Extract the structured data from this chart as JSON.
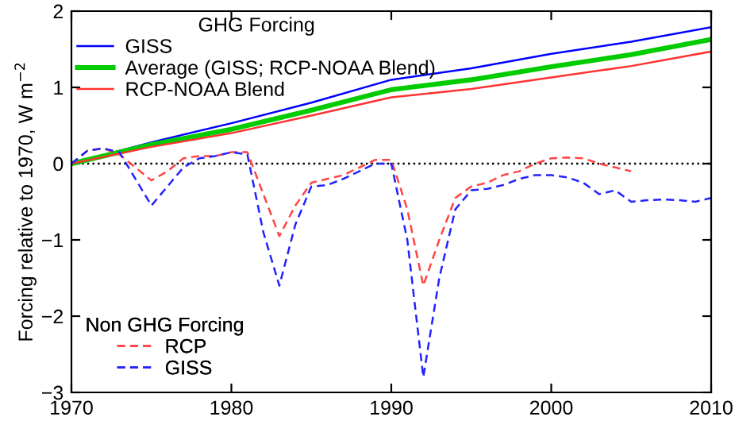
{
  "chart_data": {
    "type": "line",
    "ylabel": "Forcing relative to 1970, W m$^{−2}$",
    "xlim": [
      1970,
      2010
    ],
    "xticks": [
      1970,
      1980,
      1990,
      2000,
      2010
    ],
    "ylim": [
      -3,
      2
    ],
    "yticks": [
      {
        "value": -3,
        "label": "−3"
      },
      {
        "value": -2,
        "label": "−2"
      },
      {
        "value": -1,
        "label": "−1"
      },
      0,
      1,
      2
    ],
    "grid": false,
    "legend": "left",
    "marker": "none",
    "annotations": [
      "GHG Forcing",
      "Non GHG Forcing"
    ],
    "ref_lines": [
      {
        "axis": "y",
        "value": 0,
        "color": "#000000",
        "line_style": "dotted"
      }
    ],
    "series": [
      {
        "name": "GISS",
        "color": "#0000ff",
        "line_style": "solid",
        "x": [
          1970,
          1975,
          1980,
          1985,
          1990,
          1995,
          2000,
          2005,
          2010
        ],
        "values": [
          0,
          0.28,
          0.53,
          0.8,
          1.1,
          1.25,
          1.44,
          1.6,
          1.79
        ]
      },
      {
        "name": "Average (GISS; RCP-NOAA Blend)",
        "color": "#00cc00",
        "line_style": "solid",
        "x": [
          1970,
          1975,
          1980,
          1985,
          1990,
          1995,
          2000,
          2005,
          2010
        ],
        "values": [
          0,
          0.25,
          0.45,
          0.7,
          0.97,
          1.1,
          1.27,
          1.43,
          1.63
        ]
      },
      {
        "name": "RCP-NOAA Blend",
        "color": "#ff3333",
        "line_style": "solid",
        "x": [
          1970,
          1975,
          1980,
          1985,
          1990,
          1995,
          2000,
          2005,
          2010
        ],
        "values": [
          0,
          0.22,
          0.4,
          0.63,
          0.87,
          0.98,
          1.13,
          1.28,
          1.47
        ]
      },
      {
        "name": "RCP",
        "color": "#ff4444",
        "line_style": "dashed",
        "x": [
          1970,
          1971,
          1972,
          1973,
          1974,
          1975,
          1976,
          1977,
          1978,
          1979,
          1980,
          1981,
          1982,
          1983,
          1984,
          1985,
          1986,
          1987,
          1988,
          1989,
          1990,
          1991,
          1992,
          1993,
          1994,
          1995,
          1996,
          1997,
          1998,
          1999,
          2000,
          2001,
          2002,
          2003,
          2004,
          2005
        ],
        "values": [
          0,
          0.17,
          0.2,
          0.12,
          -0.05,
          -0.22,
          -0.1,
          0.07,
          0.1,
          0.1,
          0.15,
          0.15,
          -0.4,
          -0.95,
          -0.55,
          -0.25,
          -0.2,
          -0.15,
          -0.05,
          0.05,
          0.05,
          -0.6,
          -1.6,
          -1.0,
          -0.45,
          -0.3,
          -0.25,
          -0.15,
          -0.1,
          0.0,
          0.07,
          0.08,
          0.07,
          0.0,
          -0.05,
          -0.1
        ]
      },
      {
        "name": "GISS",
        "color": "#2222ff",
        "line_style": "dashed",
        "x": [
          1970,
          1971,
          1972,
          1973,
          1974,
          1975,
          1976,
          1977,
          1978,
          1979,
          1980,
          1981,
          1982,
          1983,
          1984,
          1985,
          1986,
          1987,
          1988,
          1989,
          1990,
          1991,
          1992,
          1993,
          1994,
          1995,
          1996,
          1997,
          1998,
          1999,
          2000,
          2001,
          2002,
          2003,
          2004,
          2005,
          2006,
          2007,
          2008,
          2009,
          2010
        ],
        "values": [
          0,
          0.17,
          0.2,
          0.15,
          -0.2,
          -0.55,
          -0.3,
          -0.05,
          0.07,
          0.1,
          0.15,
          0.12,
          -0.9,
          -1.6,
          -0.8,
          -0.3,
          -0.28,
          -0.2,
          -0.1,
          0.0,
          0.0,
          -1.0,
          -2.8,
          -1.5,
          -0.6,
          -0.35,
          -0.33,
          -0.28,
          -0.2,
          -0.15,
          -0.15,
          -0.18,
          -0.25,
          -0.4,
          -0.35,
          -0.5,
          -0.48,
          -0.47,
          -0.48,
          -0.5,
          -0.45
        ]
      }
    ]
  }
}
